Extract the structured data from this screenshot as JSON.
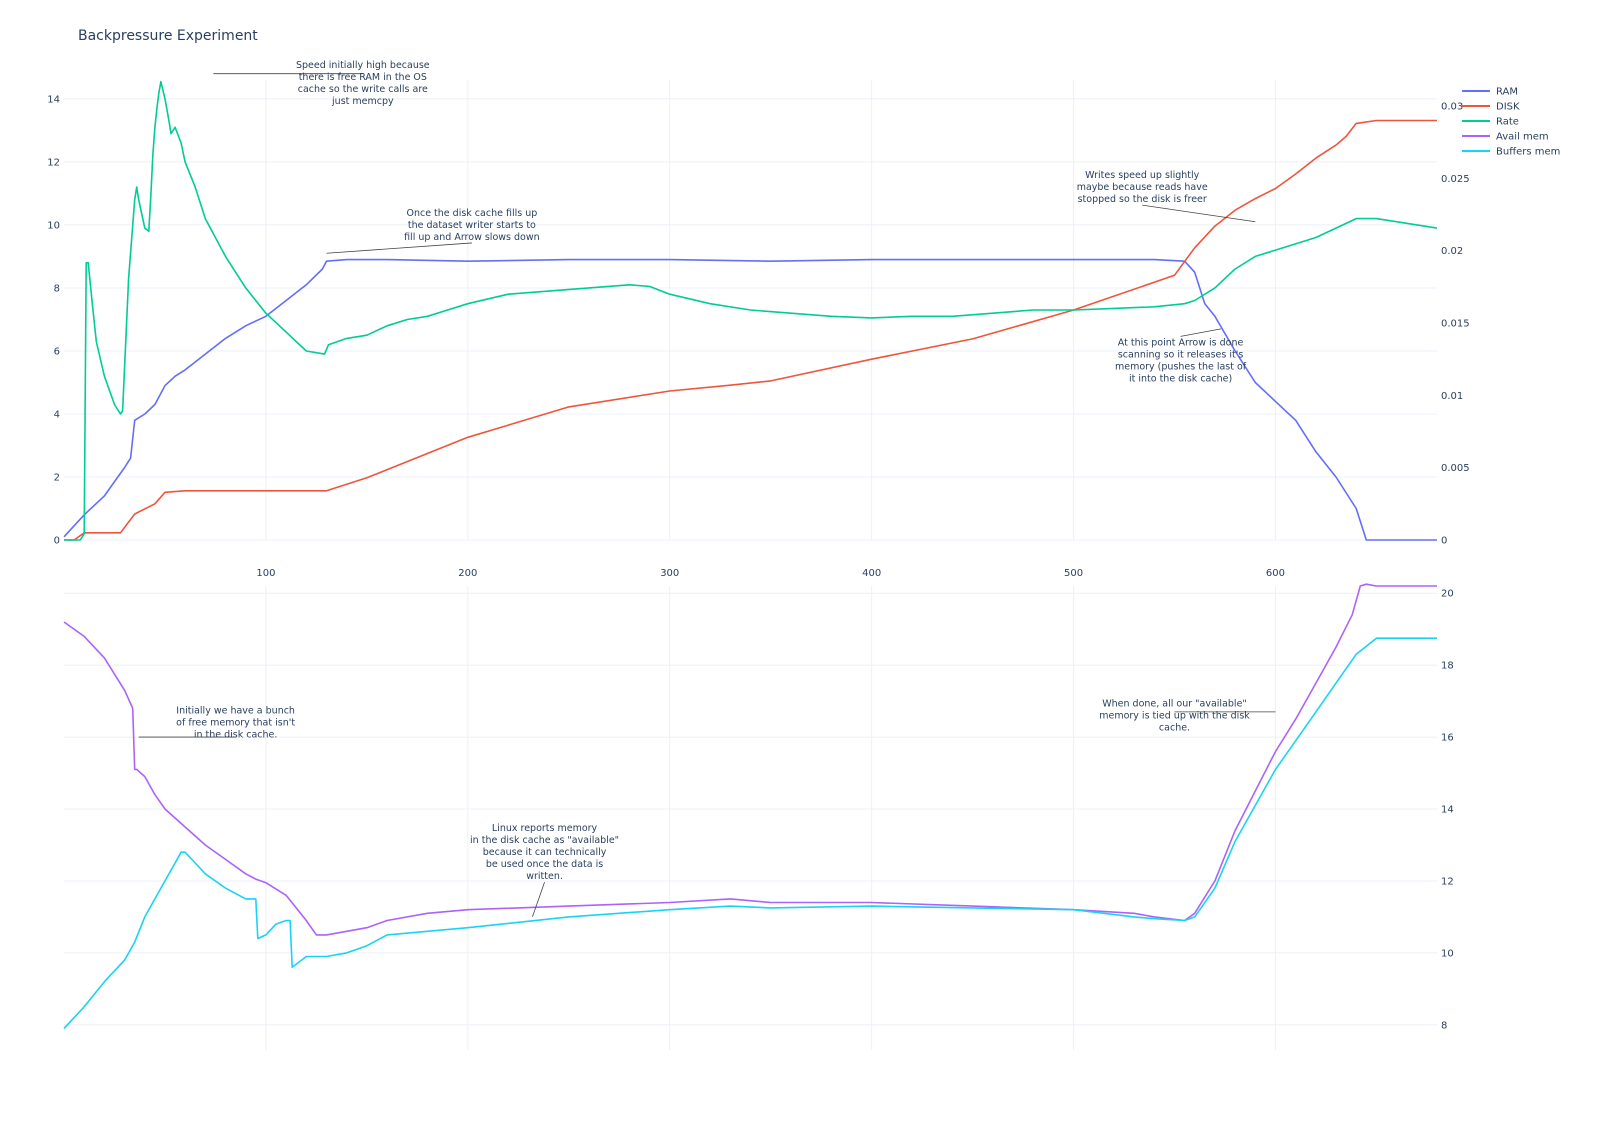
{
  "title": "Backpressure Experiment",
  "colors": {
    "RAM": "#636efa",
    "DISK": "#ef553b",
    "Rate": "#00cc96",
    "Avail mem": "#ab63fa",
    "Buffers mem": "#19d3f3"
  },
  "legend": [
    "RAM",
    "DISK",
    "Rate",
    "Avail mem",
    "Buffers mem"
  ],
  "chart_data": [
    {
      "type": "line",
      "title": "",
      "xlabel": "",
      "ylabel": "",
      "xlim": [
        0,
        680
      ],
      "ylim": [
        0,
        14.6
      ],
      "y2lim": [
        0,
        0.0318
      ],
      "x_ticks": [
        100,
        200,
        300,
        400,
        500,
        600
      ],
      "y_ticks": [
        0,
        2,
        4,
        6,
        8,
        10,
        12,
        14
      ],
      "y2_ticks": [
        0,
        0.005,
        0.01,
        0.015,
        0.02,
        0.025,
        0.03
      ],
      "grid": true,
      "legend_position": "top-right",
      "series": [
        {
          "name": "RAM",
          "axis": "y",
          "x": [
            0,
            10,
            20,
            30,
            33,
            35,
            40,
            45,
            50,
            55,
            60,
            70,
            80,
            90,
            100,
            110,
            120,
            128,
            130,
            140,
            160,
            200,
            250,
            300,
            350,
            400,
            450,
            500,
            540,
            555,
            560,
            565,
            570,
            580,
            590,
            600,
            610,
            620,
            630,
            640,
            645,
            660,
            680
          ],
          "y": [
            0.1,
            0.8,
            1.4,
            2.3,
            2.6,
            3.8,
            4.0,
            4.3,
            4.9,
            5.2,
            5.4,
            5.9,
            6.4,
            6.8,
            7.1,
            7.6,
            8.1,
            8.6,
            8.85,
            8.9,
            8.9,
            8.85,
            8.9,
            8.9,
            8.85,
            8.9,
            8.9,
            8.9,
            8.9,
            8.85,
            8.5,
            7.5,
            7.1,
            6.0,
            5.0,
            4.4,
            3.8,
            2.8,
            2.0,
            1.0,
            0,
            0,
            0
          ]
        },
        {
          "name": "DISK",
          "axis": "y2",
          "x": [
            0,
            5,
            10,
            28,
            35,
            45,
            50,
            60,
            80,
            100,
            120,
            130,
            150,
            200,
            250,
            300,
            330,
            350,
            400,
            450,
            500,
            550,
            560,
            570,
            580,
            590,
            600,
            610,
            620,
            630,
            635,
            640,
            650,
            660,
            680
          ],
          "y": [
            0,
            0,
            0.0005,
            0.0005,
            0.0018,
            0.0025,
            0.0033,
            0.0034,
            0.0034,
            0.0034,
            0.0034,
            0.0034,
            0.0043,
            0.0071,
            0.0092,
            0.0103,
            0.0107,
            0.011,
            0.0125,
            0.0139,
            0.0159,
            0.0183,
            0.0202,
            0.0217,
            0.0228,
            0.0236,
            0.0243,
            0.0253,
            0.0264,
            0.0273,
            0.0279,
            0.0288,
            0.029,
            0.029,
            0.029
          ]
        },
        {
          "name": "Rate",
          "axis": "y",
          "x": [
            0,
            8,
            10,
            11,
            12,
            14,
            16,
            20,
            25,
            28,
            29,
            30,
            32,
            35,
            36,
            37,
            38,
            40,
            42,
            43,
            44,
            45,
            46,
            47,
            48,
            50,
            52,
            53,
            55,
            58,
            60,
            65,
            70,
            80,
            90,
            100,
            110,
            120,
            129,
            131,
            140,
            150,
            160,
            170,
            180,
            190,
            200,
            220,
            240,
            260,
            280,
            290,
            300,
            320,
            340,
            360,
            380,
            400,
            420,
            440,
            460,
            480,
            500,
            520,
            540,
            555,
            560,
            570,
            580,
            590,
            600,
            620,
            630,
            640,
            650,
            680
          ],
          "y": [
            0,
            0,
            0.2,
            8.8,
            8.8,
            7.5,
            6.3,
            5.2,
            4.3,
            4.0,
            4.1,
            5.5,
            8.3,
            10.8,
            11.2,
            10.8,
            10.5,
            9.9,
            9.8,
            10.9,
            12.2,
            13.1,
            13.7,
            14.2,
            14.55,
            14.0,
            13.3,
            12.9,
            13.1,
            12.6,
            12.0,
            11.2,
            10.2,
            9.0,
            8.0,
            7.2,
            6.6,
            6.0,
            5.9,
            6.2,
            6.4,
            6.5,
            6.8,
            7.0,
            7.1,
            7.3,
            7.5,
            7.8,
            7.9,
            8.0,
            8.1,
            8.05,
            7.8,
            7.5,
            7.3,
            7.2,
            7.1,
            7.05,
            7.1,
            7.1,
            7.2,
            7.3,
            7.3,
            7.35,
            7.4,
            7.5,
            7.6,
            8.0,
            8.6,
            9.0,
            9.2,
            9.6,
            9.9,
            10.2,
            10.2,
            9.9
          ]
        }
      ]
    },
    {
      "type": "line",
      "title": "",
      "xlabel": "",
      "ylabel": "",
      "xlim": [
        0,
        680
      ],
      "y2lim": [
        7.3,
        20.2
      ],
      "y2_ticks": [
        8,
        10,
        12,
        14,
        16,
        18,
        20
      ],
      "grid": true,
      "series": [
        {
          "name": "Avail mem",
          "axis": "y2",
          "x": [
            0,
            10,
            20,
            30,
            34,
            35,
            36,
            40,
            45,
            50,
            60,
            70,
            80,
            90,
            95,
            100,
            110,
            120,
            125,
            130,
            140,
            150,
            160,
            180,
            200,
            250,
            300,
            330,
            350,
            400,
            450,
            500,
            530,
            540,
            555,
            560,
            570,
            580,
            590,
            600,
            610,
            620,
            630,
            638,
            642,
            645,
            650,
            680
          ],
          "y": [
            19.2,
            18.8,
            18.2,
            17.3,
            16.8,
            15.1,
            15.1,
            14.9,
            14.4,
            14.0,
            13.5,
            13.0,
            12.6,
            12.2,
            12.05,
            11.95,
            11.6,
            10.9,
            10.5,
            10.5,
            10.6,
            10.7,
            10.9,
            11.1,
            11.2,
            11.3,
            11.4,
            11.5,
            11.4,
            11.4,
            11.3,
            11.2,
            11.1,
            11.0,
            10.9,
            11.1,
            12.0,
            13.4,
            14.5,
            15.6,
            16.5,
            17.5,
            18.5,
            19.4,
            20.2,
            20.25,
            20.2,
            20.2
          ]
        },
        {
          "name": "Buffers mem",
          "axis": "y2",
          "x": [
            0,
            10,
            20,
            30,
            35,
            40,
            45,
            50,
            55,
            58,
            60,
            65,
            70,
            80,
            90,
            95,
            96,
            100,
            105,
            110,
            112,
            113,
            120,
            130,
            140,
            150,
            160,
            180,
            200,
            250,
            300,
            330,
            350,
            400,
            450,
            500,
            530,
            540,
            555,
            560,
            570,
            580,
            590,
            600,
            610,
            620,
            630,
            640,
            650,
            680
          ],
          "y": [
            7.9,
            8.5,
            9.2,
            9.8,
            10.3,
            11.0,
            11.5,
            12.0,
            12.5,
            12.8,
            12.8,
            12.5,
            12.2,
            11.8,
            11.5,
            11.5,
            10.4,
            10.5,
            10.8,
            10.9,
            10.9,
            9.6,
            9.9,
            9.9,
            10.0,
            10.2,
            10.5,
            10.6,
            10.7,
            11.0,
            11.2,
            11.3,
            11.25,
            11.3,
            11.25,
            11.2,
            11.0,
            10.95,
            10.9,
            11.0,
            11.8,
            13.1,
            14.1,
            15.1,
            15.9,
            16.7,
            17.5,
            18.3,
            18.75,
            18.75
          ]
        }
      ]
    }
  ],
  "annotations": [
    {
      "chart": 0,
      "x": 74,
      "y": 14.8,
      "ax": 148,
      "ay": 14.5,
      "lines": [
        "Speed initially high because",
        "there is free RAM in the OS",
        "cache so the write calls are",
        "just memcpy"
      ]
    },
    {
      "chart": 0,
      "x": 130,
      "y": 9.1,
      "ax": 202,
      "ay": 10.0,
      "lines": [
        "Once the disk cache fills up",
        "the dataset writer starts to",
        "fill up and Arrow slows down"
      ]
    },
    {
      "chart": 0,
      "x": 590,
      "y": 10.1,
      "ax": 534,
      "ay": 11.2,
      "lines": [
        "Writes speed up slightly",
        "maybe because reads have",
        "stopped so the disk is freer"
      ]
    },
    {
      "chart": 0,
      "x": 573,
      "y": 6.7,
      "ax": 553,
      "ay": 5.7,
      "lines": [
        "At this point Arrow is done",
        "scanning so it releases it's",
        "memory (pushes the last of",
        "it into the disk cache)"
      ]
    },
    {
      "chart": 1,
      "x": 37,
      "y": 16.0,
      "ax": 85,
      "ay": 16.4,
      "lines": [
        "Initially we have a bunch",
        "of free memory that isn't",
        "in the disk cache."
      ]
    },
    {
      "chart": 1,
      "x": 232,
      "y": 11.0,
      "ax": 238,
      "ay": 12.8,
      "lines": [
        "Linux reports memory",
        "in the disk cache as \"available\"",
        "because it can technically",
        "be used once the data is",
        "written."
      ]
    },
    {
      "chart": 1,
      "x": 600,
      "y": 16.7,
      "ax": 550,
      "ay": 16.6,
      "lines": [
        "When done, all our \"available\"",
        "memory is tied up with the disk",
        "cache."
      ]
    }
  ]
}
